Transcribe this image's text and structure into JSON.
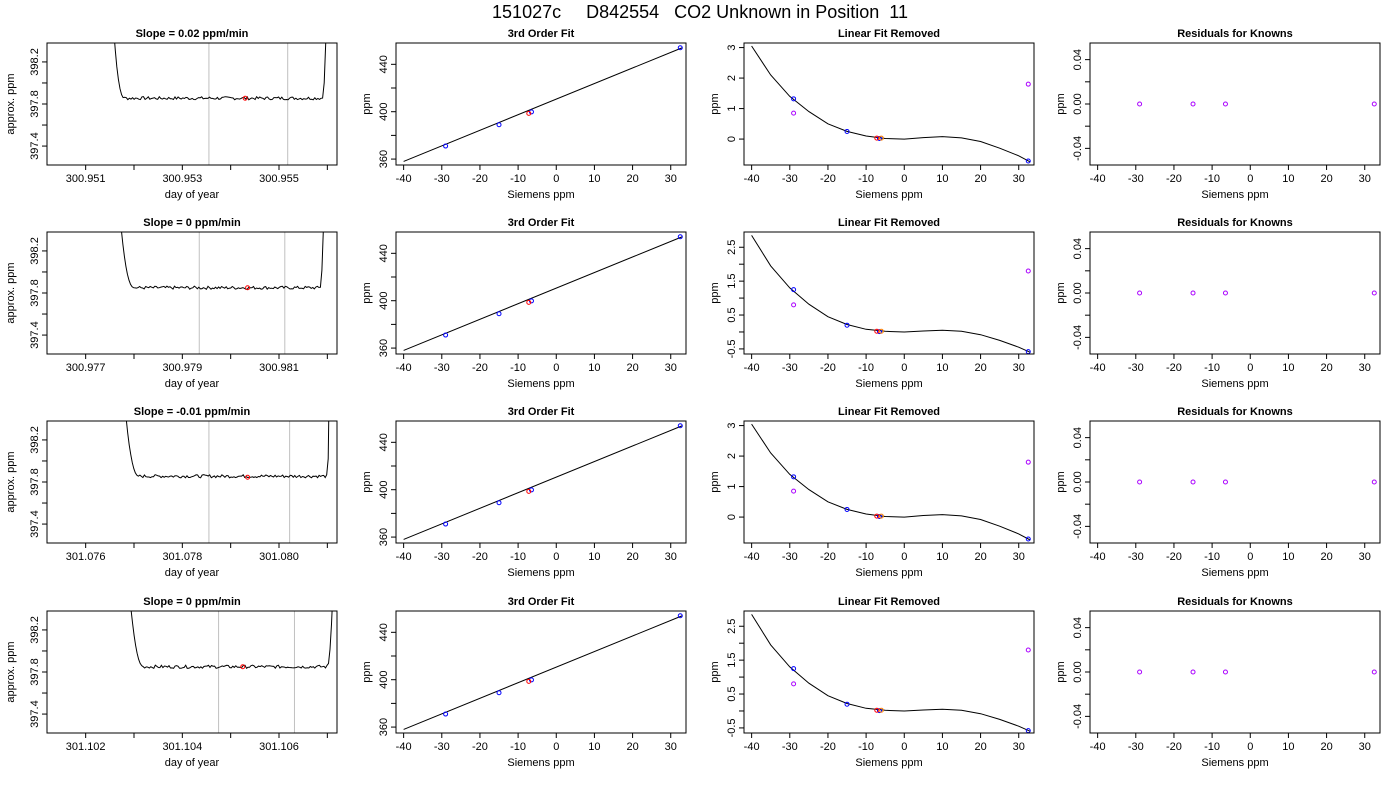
{
  "page_title": "151027c     D842554   CO2 Unknown in Position  11",
  "colors": {
    "curve": "#000000",
    "known_points": "#0000ff",
    "unknown_point": "#ff0000",
    "residual_points": "#aa00ff",
    "orange_point": "#ff8000",
    "guide_lines": "#c0c0c0"
  },
  "chart_data": [
    {
      "type": "line",
      "row": 1,
      "title": "Slope =  0.02  ppm/min",
      "xlabel": "day of year",
      "ylabel": "approx. ppm",
      "xlim": [
        300.9502,
        300.9562
      ],
      "ylim": [
        397.22,
        398.38
      ],
      "xticks": [
        300.951,
        300.952,
        300.953,
        300.954,
        300.955,
        300.956
      ],
      "xtick_labels": [
        "300.951",
        "",
        "300.953",
        "",
        "300.955",
        ""
      ],
      "yticks": [
        397.4,
        397.6,
        397.8,
        398.0,
        398.2
      ],
      "ytick_labels": [
        "397.4",
        "",
        "397.8",
        "",
        "398.2"
      ],
      "vlines": [
        300.95355,
        300.95518
      ],
      "trace": {
        "x_start": 300.95145,
        "x_end": 300.956,
        "plateau_start": 300.9518,
        "plateau_end": 300.9559,
        "level": 397.855
      },
      "marker": {
        "x": 300.9543,
        "y": 397.855
      }
    },
    {
      "type": "line",
      "row": 1,
      "title": "3rd Order Fit",
      "xlabel": "Siemens ppm",
      "ylabel": "ppm",
      "xlim": [
        -42,
        34
      ],
      "ylim": [
        355,
        458
      ],
      "xticks": [
        -40,
        -30,
        -20,
        -10,
        0,
        10,
        20,
        30
      ],
      "xtick_labels": [
        "-40",
        "-30",
        "-20",
        "-10",
        "0",
        "10",
        "20",
        "30"
      ],
      "yticks": [
        360,
        380,
        400,
        420,
        440
      ],
      "ytick_labels": [
        "360",
        "",
        "400",
        "",
        "440"
      ],
      "fit_line": {
        "x": [
          -40,
          33
        ],
        "y": [
          358,
          454
        ]
      },
      "points": {
        "x": [
          -29,
          -15,
          -6.5,
          32.5
        ],
        "y": [
          371,
          389,
          399.8,
          454
        ]
      },
      "unknown": {
        "x": -7.2,
        "y": 398.6
      }
    },
    {
      "type": "line",
      "row": 1,
      "title": "Linear Fit Removed",
      "xlabel": "Siemens ppm",
      "ylabel": "ppm",
      "xlim": [
        -42,
        34
      ],
      "ylim": [
        -0.85,
        3.15
      ],
      "xticks": [
        -40,
        -30,
        -20,
        -10,
        0,
        10,
        20,
        30
      ],
      "xtick_labels": [
        "-40",
        "-30",
        "-20",
        "-10",
        "0",
        "10",
        "20",
        "30"
      ],
      "yticks": [
        0,
        1,
        2,
        3
      ],
      "ytick_labels": [
        "0",
        "1",
        "2",
        "3"
      ],
      "curve_x": [
        -40,
        -35,
        -30,
        -25,
        -20,
        -15,
        -10,
        -5,
        0,
        5,
        10,
        15,
        20,
        25,
        30,
        33
      ],
      "curve_y": [
        3.05,
        2.1,
        1.4,
        0.9,
        0.5,
        0.25,
        0.1,
        0.02,
        0.0,
        0.05,
        0.08,
        0.04,
        -0.08,
        -0.3,
        -0.55,
        -0.75
      ],
      "known": {
        "x": [
          -29,
          -15,
          -6.5,
          32.5
        ],
        "y": [
          1.32,
          0.25,
          0.02,
          -0.72
        ]
      },
      "magenta": {
        "x": [
          -29,
          32.5
        ],
        "y": [
          0.85,
          1.8
        ]
      },
      "unknown": {
        "x": -7.2,
        "y": 0.03
      }
    },
    {
      "type": "scatter",
      "row": 1,
      "title": "Residuals for Knowns",
      "xlabel": "Siemens ppm",
      "ylabel": "ppm",
      "xlim": [
        -42,
        34
      ],
      "ylim": [
        -0.055,
        0.055
      ],
      "xticks": [
        -40,
        -30,
        -20,
        -10,
        0,
        10,
        20,
        30
      ],
      "xtick_labels": [
        "-40",
        "-30",
        "-20",
        "-10",
        "0",
        "10",
        "20",
        "30"
      ],
      "yticks": [
        -0.04,
        -0.02,
        0.0,
        0.02,
        0.04
      ],
      "ytick_labels": [
        "-0.04",
        "",
        "0.00",
        "",
        "0.04"
      ],
      "points": {
        "x": [
          -29,
          -15,
          -6.5,
          32.5
        ],
        "y": [
          0,
          0,
          0,
          0
        ]
      }
    },
    {
      "type": "line",
      "row": 2,
      "title": "Slope =  0  ppm/min",
      "xlabel": "day of year",
      "ylabel": "approx. ppm",
      "xlim": [
        300.9762,
        300.9822
      ],
      "ylim": [
        397.22,
        398.38
      ],
      "xticks": [
        300.977,
        300.978,
        300.979,
        300.98,
        300.981,
        300.982
      ],
      "xtick_labels": [
        "300.977",
        "",
        "300.979",
        "",
        "300.981",
        ""
      ],
      "yticks": [
        397.4,
        397.6,
        397.8,
        398.0,
        398.2
      ],
      "ytick_labels": [
        "397.4",
        "",
        "397.8",
        "",
        "398.2"
      ],
      "vlines": [
        300.97935,
        300.98112
      ],
      "trace": {
        "x_start": 300.97755,
        "x_end": 300.98195,
        "plateau_start": 300.978,
        "plateau_end": 300.98185,
        "level": 397.85
      },
      "marker": {
        "x": 300.98035,
        "y": 397.85
      }
    },
    {
      "type": "line",
      "row": 2,
      "title": "3rd Order Fit",
      "xlabel": "Siemens ppm",
      "ylabel": "ppm",
      "xlim": [
        -42,
        34
      ],
      "ylim": [
        355,
        458
      ],
      "xticks": [
        -40,
        -30,
        -20,
        -10,
        0,
        10,
        20,
        30
      ],
      "xtick_labels": [
        "-40",
        "-30",
        "-20",
        "-10",
        "0",
        "10",
        "20",
        "30"
      ],
      "yticks": [
        360,
        380,
        400,
        420,
        440
      ],
      "ytick_labels": [
        "360",
        "",
        "400",
        "",
        "440"
      ],
      "fit_line": {
        "x": [
          -40,
          33
        ],
        "y": [
          358,
          454
        ]
      },
      "points": {
        "x": [
          -29,
          -15,
          -6.5,
          32.5
        ],
        "y": [
          371,
          389,
          399.8,
          454
        ]
      },
      "unknown": {
        "x": -7.2,
        "y": 398.6
      }
    },
    {
      "type": "line",
      "row": 2,
      "title": "Linear Fit Removed",
      "xlabel": "Siemens ppm",
      "ylabel": "ppm",
      "xlim": [
        -42,
        34
      ],
      "ylim": [
        -0.65,
        2.95
      ],
      "xticks": [
        -40,
        -30,
        -20,
        -10,
        0,
        10,
        20,
        30
      ],
      "xtick_labels": [
        "-40",
        "-30",
        "-20",
        "-10",
        "0",
        "10",
        "20",
        "30"
      ],
      "yticks": [
        -0.5,
        0,
        0.5,
        1.0,
        1.5,
        2.0,
        2.5
      ],
      "ytick_labels": [
        "-0.5",
        "",
        "0.5",
        "",
        "1.5",
        "",
        "2.5"
      ],
      "curve_x": [
        -40,
        -35,
        -30,
        -25,
        -20,
        -15,
        -10,
        -5,
        0,
        5,
        10,
        15,
        20,
        25,
        30,
        33
      ],
      "curve_y": [
        2.85,
        1.95,
        1.3,
        0.82,
        0.45,
        0.22,
        0.08,
        0.02,
        0.0,
        0.03,
        0.05,
        0.02,
        -0.08,
        -0.25,
        -0.45,
        -0.6
      ],
      "known": {
        "x": [
          -29,
          -15,
          -6.5,
          32.5
        ],
        "y": [
          1.25,
          0.2,
          0.01,
          -0.58
        ]
      },
      "magenta": {
        "x": [
          -29,
          32.5
        ],
        "y": [
          0.8,
          1.8
        ]
      },
      "unknown": {
        "x": -7.2,
        "y": 0.02
      }
    },
    {
      "type": "scatter",
      "row": 2,
      "title": "Residuals for Knowns",
      "xlabel": "Siemens ppm",
      "ylabel": "ppm",
      "xlim": [
        -42,
        34
      ],
      "ylim": [
        -0.055,
        0.055
      ],
      "xticks": [
        -40,
        -30,
        -20,
        -10,
        0,
        10,
        20,
        30
      ],
      "xtick_labels": [
        "-40",
        "-30",
        "-20",
        "-10",
        "0",
        "10",
        "20",
        "30"
      ],
      "yticks": [
        -0.04,
        -0.02,
        0.0,
        0.02,
        0.04
      ],
      "ytick_labels": [
        "-0.04",
        "",
        "0.00",
        "",
        "0.04"
      ],
      "points": {
        "x": [
          -29,
          -15,
          -6.5,
          32.5
        ],
        "y": [
          0,
          0,
          0,
          0
        ]
      }
    },
    {
      "type": "line",
      "row": 3,
      "title": "Slope =  -0.01  ppm/min",
      "xlabel": "day of year",
      "ylabel": "approx. ppm",
      "xlim": [
        301.0752,
        301.0812
      ],
      "ylim": [
        397.22,
        398.38
      ],
      "xticks": [
        301.076,
        301.077,
        301.078,
        301.079,
        301.08,
        301.081
      ],
      "xtick_labels": [
        "301.076",
        "",
        "301.078",
        "",
        "301.080",
        ""
      ],
      "yticks": [
        397.4,
        397.6,
        397.8,
        398.0,
        398.2
      ],
      "ytick_labels": [
        "397.4",
        "",
        "397.8",
        "",
        "398.2"
      ],
      "vlines": [
        301.07855,
        301.08022
      ],
      "trace": {
        "x_start": 301.07665,
        "x_end": 301.08105,
        "plateau_start": 301.0771,
        "plateau_end": 301.081,
        "level": 397.855
      },
      "marker": {
        "x": 301.07935,
        "y": 397.845
      }
    },
    {
      "type": "line",
      "row": 3,
      "title": "3rd Order Fit",
      "xlabel": "Siemens ppm",
      "ylabel": "ppm",
      "xlim": [
        -42,
        34
      ],
      "ylim": [
        355,
        458
      ],
      "xticks": [
        -40,
        -30,
        -20,
        -10,
        0,
        10,
        20,
        30
      ],
      "xtick_labels": [
        "-40",
        "-30",
        "-20",
        "-10",
        "0",
        "10",
        "20",
        "30"
      ],
      "yticks": [
        360,
        380,
        400,
        420,
        440
      ],
      "ytick_labels": [
        "360",
        "",
        "400",
        "",
        "440"
      ],
      "fit_line": {
        "x": [
          -40,
          33
        ],
        "y": [
          358,
          454
        ]
      },
      "points": {
        "x": [
          -29,
          -15,
          -6.5,
          32.5
        ],
        "y": [
          371,
          389,
          399.8,
          454
        ]
      },
      "unknown": {
        "x": -7.2,
        "y": 398.6
      }
    },
    {
      "type": "line",
      "row": 3,
      "title": "Linear Fit Removed",
      "xlabel": "Siemens ppm",
      "ylabel": "ppm",
      "xlim": [
        -42,
        34
      ],
      "ylim": [
        -0.85,
        3.15
      ],
      "xticks": [
        -40,
        -30,
        -20,
        -10,
        0,
        10,
        20,
        30
      ],
      "xtick_labels": [
        "-40",
        "-30",
        "-20",
        "-10",
        "0",
        "10",
        "20",
        "30"
      ],
      "yticks": [
        0,
        1,
        2,
        3
      ],
      "ytick_labels": [
        "0",
        "1",
        "2",
        "3"
      ],
      "curve_x": [
        -40,
        -35,
        -30,
        -25,
        -20,
        -15,
        -10,
        -5,
        0,
        5,
        10,
        15,
        20,
        25,
        30,
        33
      ],
      "curve_y": [
        3.05,
        2.1,
        1.4,
        0.9,
        0.5,
        0.25,
        0.1,
        0.02,
        0.0,
        0.05,
        0.08,
        0.04,
        -0.08,
        -0.3,
        -0.55,
        -0.75
      ],
      "known": {
        "x": [
          -29,
          -15,
          -6.5,
          32.5
        ],
        "y": [
          1.32,
          0.25,
          0.02,
          -0.72
        ]
      },
      "magenta": {
        "x": [
          -29,
          32.5
        ],
        "y": [
          0.85,
          1.8
        ]
      },
      "unknown": {
        "x": -7.2,
        "y": 0.03
      }
    },
    {
      "type": "scatter",
      "row": 3,
      "title": "Residuals for Knowns",
      "xlabel": "Siemens ppm",
      "ylabel": "ppm",
      "xlim": [
        -42,
        34
      ],
      "ylim": [
        -0.055,
        0.055
      ],
      "xticks": [
        -40,
        -30,
        -20,
        -10,
        0,
        10,
        20,
        30
      ],
      "xtick_labels": [
        "-40",
        "-30",
        "-20",
        "-10",
        "0",
        "10",
        "20",
        "30"
      ],
      "yticks": [
        -0.04,
        -0.02,
        0.0,
        0.02,
        0.04
      ],
      "ytick_labels": [
        "-0.04",
        "",
        "0.00",
        "",
        "0.04"
      ],
      "points": {
        "x": [
          -29,
          -15,
          -6.5,
          32.5
        ],
        "y": [
          0,
          0,
          0,
          0
        ]
      }
    },
    {
      "type": "line",
      "row": 4,
      "title": "Slope =  0  ppm/min",
      "xlabel": "day of year",
      "ylabel": "approx. ppm",
      "xlim": [
        301.1012,
        301.1072
      ],
      "ylim": [
        397.22,
        398.38
      ],
      "xticks": [
        301.102,
        301.103,
        301.104,
        301.105,
        301.106,
        301.107
      ],
      "xtick_labels": [
        "301.102",
        "",
        "301.104",
        "",
        "301.106",
        ""
      ],
      "yticks": [
        397.4,
        397.6,
        397.8,
        398.0,
        398.2
      ],
      "ytick_labels": [
        "397.4",
        "",
        "397.8",
        "",
        "398.2"
      ],
      "vlines": [
        301.10475,
        301.10632
      ],
      "trace": {
        "x_start": 301.10275,
        "x_end": 301.10715,
        "plateau_start": 301.1032,
        "plateau_end": 301.107,
        "level": 397.85
      },
      "marker": {
        "x": 301.10525,
        "y": 397.85
      }
    },
    {
      "type": "line",
      "row": 4,
      "title": "3rd Order Fit",
      "xlabel": "Siemens ppm",
      "ylabel": "ppm",
      "xlim": [
        -42,
        34
      ],
      "ylim": [
        355,
        458
      ],
      "xticks": [
        -40,
        -30,
        -20,
        -10,
        0,
        10,
        20,
        30
      ],
      "xtick_labels": [
        "-40",
        "-30",
        "-20",
        "-10",
        "0",
        "10",
        "20",
        "30"
      ],
      "yticks": [
        360,
        380,
        400,
        420,
        440
      ],
      "ytick_labels": [
        "360",
        "",
        "400",
        "",
        "440"
      ],
      "fit_line": {
        "x": [
          -40,
          33
        ],
        "y": [
          358,
          454
        ]
      },
      "points": {
        "x": [
          -29,
          -15,
          -6.5,
          32.5
        ],
        "y": [
          371,
          389,
          399.8,
          454
        ]
      },
      "unknown": {
        "x": -7.2,
        "y": 398.6
      }
    },
    {
      "type": "line",
      "row": 4,
      "title": "Linear Fit Removed",
      "xlabel": "Siemens ppm",
      "ylabel": "ppm",
      "xlim": [
        -42,
        34
      ],
      "ylim": [
        -0.65,
        2.95
      ],
      "xticks": [
        -40,
        -30,
        -20,
        -10,
        0,
        10,
        20,
        30
      ],
      "xtick_labels": [
        "-40",
        "-30",
        "-20",
        "-10",
        "0",
        "10",
        "20",
        "30"
      ],
      "yticks": [
        -0.5,
        0,
        0.5,
        1.0,
        1.5,
        2.0,
        2.5
      ],
      "ytick_labels": [
        "-0.5",
        "",
        "0.5",
        "",
        "1.5",
        "",
        "2.5"
      ],
      "curve_x": [
        -40,
        -35,
        -30,
        -25,
        -20,
        -15,
        -10,
        -5,
        0,
        5,
        10,
        15,
        20,
        25,
        30,
        33
      ],
      "curve_y": [
        2.85,
        1.95,
        1.3,
        0.82,
        0.45,
        0.22,
        0.08,
        0.02,
        0.0,
        0.03,
        0.05,
        0.02,
        -0.08,
        -0.25,
        -0.45,
        -0.6
      ],
      "known": {
        "x": [
          -29,
          -15,
          -6.5,
          32.5
        ],
        "y": [
          1.25,
          0.2,
          0.01,
          -0.58
        ]
      },
      "magenta": {
        "x": [
          -29,
          32.5
        ],
        "y": [
          0.8,
          1.8
        ]
      },
      "unknown": {
        "x": -7.2,
        "y": 0.02
      }
    },
    {
      "type": "scatter",
      "row": 4,
      "title": "Residuals for Knowns",
      "xlabel": "Siemens ppm",
      "ylabel": "ppm",
      "xlim": [
        -42,
        34
      ],
      "ylim": [
        -0.055,
        0.055
      ],
      "xticks": [
        -40,
        -30,
        -20,
        -10,
        0,
        10,
        20,
        30
      ],
      "xtick_labels": [
        "-40",
        "-30",
        "-20",
        "-10",
        "0",
        "10",
        "20",
        "30"
      ],
      "yticks": [
        -0.04,
        -0.02,
        0.0,
        0.02,
        0.04
      ],
      "ytick_labels": [
        "-0.04",
        "",
        "0.00",
        "",
        "0.04"
      ],
      "points": {
        "x": [
          -29,
          -15,
          -6.5,
          32.5
        ],
        "y": [
          0,
          0,
          0,
          0
        ]
      }
    }
  ]
}
